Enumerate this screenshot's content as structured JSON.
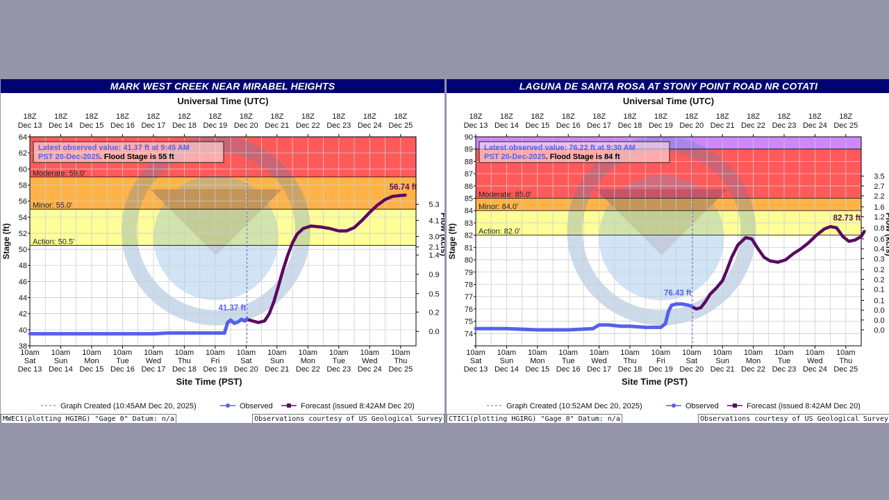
{
  "chart_data": [
    {
      "type": "line",
      "title": "MARK WEST CREEK NEAR MIRABEL HEIGHTS",
      "top_axis_title": "Universal Time (UTC)",
      "top_ticks": [
        "18Z|Dec 13",
        "18Z|Dec 14",
        "18Z|Dec 15",
        "18Z|Dec 16",
        "18Z|Dec 17",
        "18Z|Dec 18",
        "18Z|Dec 19",
        "18Z|Dec 20",
        "18Z|Dec 21",
        "18Z|Dec 22",
        "18Z|Dec 23",
        "18Z|Dec 24",
        "18Z|Dec 25"
      ],
      "bottom_ticks": [
        "10am|Sat|Dec 13",
        "10am|Sun|Dec 14",
        "10am|Mon|Dec 15",
        "10am|Tue|Dec 16",
        "10am|Wed|Dec 17",
        "10am|Thu|Dec 18",
        "10am|Fri|Dec 19",
        "10am|Sat|Dec 20",
        "10am|Sun|Dec 21",
        "10am|Mon|Dec 22",
        "10am|Tue|Dec 23",
        "10am|Wed|Dec 24",
        "10am|Thu|Dec 25"
      ],
      "xlabel": "Site Time (PST)",
      "ylabel": "Stage (ft)",
      "y2label": "Flow (kcfs)",
      "x_range": [
        0,
        12.5
      ],
      "ylim": [
        38,
        64
      ],
      "y_ticks": [
        38,
        40,
        42,
        44,
        46,
        48,
        50,
        52,
        54,
        56,
        58,
        60,
        62,
        64
      ],
      "y_tick_labels": [
        "38",
        "40",
        "42",
        "44",
        "46",
        "48",
        "50",
        "52",
        "54",
        "56",
        "58",
        "60",
        "62",
        "64"
      ],
      "flow_ticks": [
        {
          "stage": 39.8,
          "label": "0.0"
        },
        {
          "stage": 42.2,
          "label": "0.2"
        },
        {
          "stage": 44.5,
          "label": "0.5"
        },
        {
          "stage": 46.9,
          "label": "0.9"
        },
        {
          "stage": 49.3,
          "label": "1.4"
        },
        {
          "stage": 50.3,
          "label": "2.1"
        },
        {
          "stage": 51.6,
          "label": "3.0"
        },
        {
          "stage": 53.6,
          "label": "4.1"
        },
        {
          "stage": 55.6,
          "label": "5.3"
        }
      ],
      "bands": [
        {
          "from": 50.5,
          "to": 55.0,
          "color": "#ffff99",
          "label": "Action: 50.5'"
        },
        {
          "from": 55.0,
          "to": 59.0,
          "color": "#ffb347",
          "label": "Minor: 55.0'"
        },
        {
          "from": 59.0,
          "to": 64.0,
          "color": "#ff5a5a",
          "label": "Moderate: 59.0'"
        }
      ],
      "created_x": 7.03,
      "latest_box": {
        "line1": "Latest observed value: 41.37 ft at 9:45 AM",
        "line2a": "PST 20-Dec-2025",
        "line2b": ". Flood Stage is 55 ft"
      },
      "observed": [
        [
          0,
          39.5
        ],
        [
          1,
          39.5
        ],
        [
          2,
          39.5
        ],
        [
          3,
          39.5
        ],
        [
          4,
          39.5
        ],
        [
          4.5,
          39.6
        ],
        [
          5,
          39.6
        ],
        [
          5.5,
          39.6
        ],
        [
          6,
          39.6
        ],
        [
          6.3,
          39.6
        ],
        [
          6.35,
          40.2
        ],
        [
          6.4,
          40.9
        ],
        [
          6.5,
          41.2
        ],
        [
          6.62,
          40.8
        ],
        [
          6.75,
          41.0
        ],
        [
          6.85,
          41.3
        ],
        [
          6.95,
          41.1
        ],
        [
          7.03,
          41.37
        ]
      ],
      "forecast": [
        [
          7.03,
          41.3
        ],
        [
          7.2,
          41.1
        ],
        [
          7.4,
          40.9
        ],
        [
          7.6,
          41.1
        ],
        [
          7.75,
          42.0
        ],
        [
          7.9,
          43.5
        ],
        [
          8.05,
          45.5
        ],
        [
          8.2,
          47.5
        ],
        [
          8.35,
          49.3
        ],
        [
          8.5,
          50.8
        ],
        [
          8.65,
          51.9
        ],
        [
          8.85,
          52.6
        ],
        [
          9.1,
          52.9
        ],
        [
          9.4,
          52.8
        ],
        [
          9.7,
          52.6
        ],
        [
          10.0,
          52.3
        ],
        [
          10.25,
          52.3
        ],
        [
          10.5,
          52.7
        ],
        [
          10.75,
          53.6
        ],
        [
          11.0,
          54.6
        ],
        [
          11.25,
          55.5
        ],
        [
          11.5,
          56.2
        ],
        [
          11.75,
          56.6
        ],
        [
          12.0,
          56.7
        ],
        [
          12.15,
          56.74
        ]
      ],
      "observed_label": "41.37 ft",
      "observed_label_point": [
        6.55,
        41.37
      ],
      "forecast_label": "56.74 ft",
      "forecast_label_point": [
        11.55,
        56.74
      ],
      "legend": {
        "created": "Graph Created (10:45AM Dec 20, 2025)",
        "observed": "Observed",
        "forecast": "Forecast (issued 8:42AM Dec 20)"
      },
      "footer_left": "MWEC1(plotting HGIRG) \"Gage 0\" Datum: n/a",
      "footer_right": "Observations courtesy of US Geological Survey"
    },
    {
      "type": "line",
      "title": "LAGUNA DE SANTA ROSA AT STONY POINT ROAD NR COTATI",
      "top_axis_title": "Universal Time (UTC)",
      "top_ticks": [
        "18Z|Dec 13",
        "18Z|Dec 14",
        "18Z|Dec 15",
        "18Z|Dec 16",
        "18Z|Dec 17",
        "18Z|Dec 18",
        "18Z|Dec 19",
        "18Z|Dec 20",
        "18Z|Dec 21",
        "18Z|Dec 22",
        "18Z|Dec 23",
        "18Z|Dec 24",
        "18Z|Dec 25"
      ],
      "bottom_ticks": [
        "10am|Sat|Dec 13",
        "10am|Sun|Dec 14",
        "10am|Mon|Dec 15",
        "10am|Tue|Dec 16",
        "10am|Wed|Dec 17",
        "10am|Thu|Dec 18",
        "10am|Fri|Dec 19",
        "10am|Sat|Dec 20",
        "10am|Sun|Dec 21",
        "10am|Mon|Dec 22",
        "10am|Tue|Dec 23",
        "10am|Wed|Dec 24",
        "10am|Thu|Dec 25"
      ],
      "xlabel": "Site Time (PST)",
      "ylabel": "Stage (ft)",
      "y2label": "Flow (kcfs)",
      "x_range": [
        0,
        12.5
      ],
      "ylim": [
        73,
        90
      ],
      "y_ticks": [
        73,
        74,
        75,
        76,
        77,
        78,
        79,
        80,
        81,
        82,
        83,
        84,
        85,
        86,
        87,
        88,
        89,
        90
      ],
      "y_tick_labels": [
        "",
        "74",
        "75",
        "76",
        "77",
        "78",
        "79",
        "80",
        "81",
        "82",
        "83",
        "84",
        "85",
        "86",
        "87",
        "88",
        "89",
        "90"
      ],
      "flow_ticks": [
        {
          "stage": 74.3,
          "label": "0.0"
        },
        {
          "stage": 75.1,
          "label": "0.0"
        },
        {
          "stage": 75.9,
          "label": "0.0"
        },
        {
          "stage": 76.7,
          "label": "0.1"
        },
        {
          "stage": 77.6,
          "label": "0.1"
        },
        {
          "stage": 78.4,
          "label": "0.2"
        },
        {
          "stage": 79.2,
          "label": "0.2"
        },
        {
          "stage": 80.1,
          "label": "0.3"
        },
        {
          "stage": 80.9,
          "label": "0.4"
        },
        {
          "stage": 81.7,
          "label": "0.6"
        },
        {
          "stage": 82.6,
          "label": "0.8"
        },
        {
          "stage": 83.5,
          "label": "1.2"
        },
        {
          "stage": 84.3,
          "label": "1.6"
        },
        {
          "stage": 85.2,
          "label": "2.2"
        },
        {
          "stage": 86.0,
          "label": "2.7"
        },
        {
          "stage": 86.8,
          "label": "3.5"
        }
      ],
      "bands": [
        {
          "from": 82.0,
          "to": 84.0,
          "color": "#ffff99",
          "label": "Action: 82.0'"
        },
        {
          "from": 84.0,
          "to": 85.0,
          "color": "#ffb347",
          "label": "Minor: 84.0'"
        },
        {
          "from": 85.0,
          "to": 89.0,
          "color": "#ff5a5a",
          "label": "Moderate: 85.0'"
        },
        {
          "from": 89.0,
          "to": 90.0,
          "color": "#cc88ff",
          "label": ""
        }
      ],
      "created_x": 7.03,
      "latest_box": {
        "line1": "Latest observed value: 76.22 ft at 9:30 AM",
        "line2a": "PST 20-Dec-2025",
        "line2b": ". Flood Stage is 84 ft"
      },
      "observed": [
        [
          0,
          74.4
        ],
        [
          1,
          74.4
        ],
        [
          2,
          74.3
        ],
        [
          3,
          74.3
        ],
        [
          3.8,
          74.4
        ],
        [
          4.0,
          74.7
        ],
        [
          4.3,
          74.7
        ],
        [
          4.7,
          74.6
        ],
        [
          5.0,
          74.6
        ],
        [
          5.5,
          74.5
        ],
        [
          6.0,
          74.5
        ],
        [
          6.15,
          74.8
        ],
        [
          6.25,
          75.8
        ],
        [
          6.35,
          76.3
        ],
        [
          6.5,
          76.4
        ],
        [
          6.7,
          76.4
        ],
        [
          6.9,
          76.3
        ],
        [
          7.0,
          76.22
        ]
      ],
      "forecast": [
        [
          7.0,
          76.2
        ],
        [
          7.15,
          76.0
        ],
        [
          7.3,
          76.1
        ],
        [
          7.45,
          76.6
        ],
        [
          7.6,
          77.2
        ],
        [
          7.8,
          77.7
        ],
        [
          8.0,
          78.3
        ],
        [
          8.15,
          79.2
        ],
        [
          8.3,
          80.2
        ],
        [
          8.5,
          81.2
        ],
        [
          8.75,
          81.8
        ],
        [
          8.95,
          81.7
        ],
        [
          9.15,
          80.9
        ],
        [
          9.35,
          80.2
        ],
        [
          9.55,
          79.9
        ],
        [
          9.8,
          79.8
        ],
        [
          10.05,
          80.0
        ],
        [
          10.3,
          80.5
        ],
        [
          10.55,
          80.9
        ],
        [
          10.8,
          81.4
        ],
        [
          11.05,
          82.0
        ],
        [
          11.3,
          82.5
        ],
        [
          11.5,
          82.7
        ],
        [
          11.7,
          82.6
        ],
        [
          11.9,
          81.9
        ],
        [
          12.1,
          81.5
        ],
        [
          12.3,
          81.6
        ],
        [
          12.5,
          81.9
        ],
        [
          12.6,
          82.3
        ]
      ],
      "observed_label": "76.43 ft",
      "observed_label_point": [
        6.55,
        76.43
      ],
      "forecast_label": "82.73 ft",
      "forecast_label_point": [
        11.5,
        82.73
      ],
      "legend": {
        "created": "Graph Created (10:52AM Dec 20, 2025)",
        "observed": "Observed",
        "forecast": "Forecast (issued 8:42AM Dec 20)"
      },
      "footer_left": "CTIC1(plotting HGIRG) \"Gage 0\" Datum: n/a",
      "footer_right": "Observations courtesy of US Geological Survey"
    }
  ],
  "colors": {
    "observed": "#5560ee",
    "forecast": "#5a0a60",
    "grid": "#cccccc",
    "title_bar": "#020272"
  }
}
